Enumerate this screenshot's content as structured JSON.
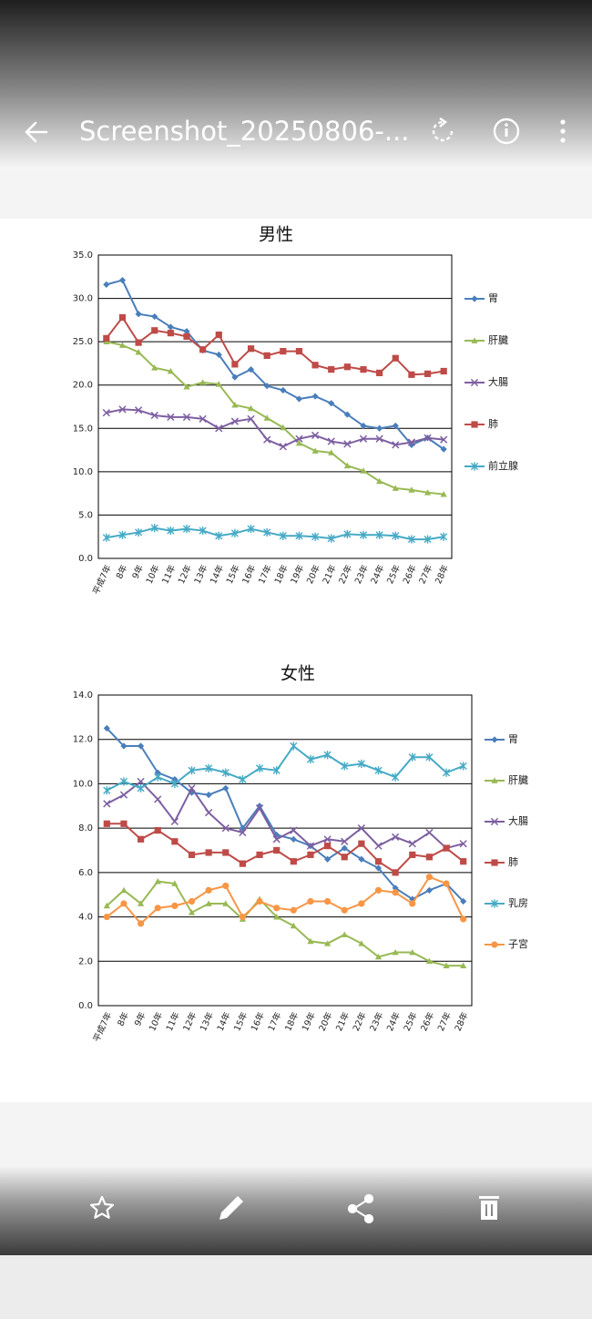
{
  "header": {
    "title": "Screenshot_20250806-..."
  },
  "chart_data": [
    {
      "type": "line",
      "title": "男性",
      "categories": [
        "平成7年",
        "8年",
        "9年",
        "10年",
        "11年",
        "12年",
        "13年",
        "14年",
        "15年",
        "16年",
        "17年",
        "18年",
        "19年",
        "20年",
        "21年",
        "22年",
        "23年",
        "24年",
        "25年",
        "26年",
        "27年",
        "28年"
      ],
      "ylim": [
        0,
        35
      ],
      "yticks": [
        {
          "value": 0,
          "label": "0.0"
        },
        {
          "value": 5,
          "label": "5.0"
        },
        {
          "value": 10,
          "label": "10.0"
        },
        {
          "value": 15,
          "label": "15.0"
        },
        {
          "value": 20,
          "label": "20.0"
        },
        {
          "value": 25,
          "label": "25.0"
        },
        {
          "value": 30,
          "label": "30.0"
        },
        {
          "value": 35,
          "label": "35.0"
        }
      ],
      "grid": true,
      "legend": "right",
      "series": [
        {
          "name": "胃",
          "color": "#4a7ebb",
          "marker": "diamond",
          "values": [
            31.6,
            32.1,
            28.2,
            27.9,
            26.7,
            26.2,
            24.0,
            23.5,
            20.9,
            21.8,
            19.9,
            19.4,
            18.4,
            18.7,
            17.9,
            16.6,
            15.3,
            15.0,
            15.3,
            13.1,
            13.9,
            12.6
          ]
        },
        {
          "name": "肝臓",
          "color": "#98b954",
          "marker": "triangle",
          "values": [
            25.0,
            24.6,
            23.8,
            22.0,
            21.6,
            19.8,
            20.3,
            20.1,
            17.7,
            17.3,
            16.2,
            15.1,
            13.3,
            12.4,
            12.2,
            10.7,
            10.1,
            8.9,
            8.1,
            7.9,
            7.6,
            7.4
          ]
        },
        {
          "name": "大腸",
          "color": "#7d5fa0",
          "marker": "x",
          "values": [
            16.8,
            17.2,
            17.1,
            16.5,
            16.3,
            16.3,
            16.1,
            15.0,
            15.8,
            16.1,
            13.7,
            12.9,
            13.8,
            14.2,
            13.5,
            13.2,
            13.8,
            13.8,
            13.1,
            13.4,
            13.9,
            13.7
          ]
        },
        {
          "name": "肺",
          "color": "#be4b48",
          "marker": "square",
          "values": [
            25.4,
            27.8,
            24.9,
            26.3,
            26.0,
            25.6,
            24.1,
            25.8,
            22.4,
            24.2,
            23.4,
            23.9,
            23.9,
            22.3,
            21.8,
            22.1,
            21.8,
            21.4,
            23.1,
            21.2,
            21.3,
            21.6
          ]
        },
        {
          "name": "前立腺",
          "color": "#46aac5",
          "marker": "star",
          "values": [
            2.4,
            2.7,
            3.0,
            3.5,
            3.2,
            3.4,
            3.2,
            2.6,
            2.9,
            3.4,
            3.0,
            2.6,
            2.6,
            2.5,
            2.3,
            2.8,
            2.7,
            2.7,
            2.6,
            2.2,
            2.2,
            2.5
          ]
        }
      ]
    },
    {
      "type": "line",
      "title": "女性",
      "categories": [
        "平成7年",
        "8年",
        "9年",
        "10年",
        "11年",
        "12年",
        "13年",
        "14年",
        "15年",
        "16年",
        "17年",
        "18年",
        "19年",
        "20年",
        "21年",
        "22年",
        "23年",
        "24年",
        "25年",
        "26年",
        "27年",
        "28年"
      ],
      "ylim": [
        0,
        14
      ],
      "yticks": [
        {
          "value": 0,
          "label": "0.0"
        },
        {
          "value": 2,
          "label": "2.0"
        },
        {
          "value": 4,
          "label": "4.0"
        },
        {
          "value": 6,
          "label": "6.0"
        },
        {
          "value": 8,
          "label": "8.0"
        },
        {
          "value": 10,
          "label": "10.0"
        },
        {
          "value": 12,
          "label": "12.0"
        },
        {
          "value": 14,
          "label": "14.0"
        }
      ],
      "grid": true,
      "legend": "right",
      "series": [
        {
          "name": "胃",
          "color": "#4a7ebb",
          "marker": "diamond",
          "values": [
            12.5,
            11.7,
            11.7,
            10.5,
            10.2,
            9.6,
            9.5,
            9.8,
            8.0,
            9.0,
            7.7,
            7.5,
            7.2,
            6.6,
            7.1,
            6.6,
            6.2,
            5.3,
            4.8,
            5.2,
            5.5,
            4.7
          ]
        },
        {
          "name": "肝臓",
          "color": "#98b954",
          "marker": "triangle",
          "values": [
            4.5,
            5.2,
            4.6,
            5.6,
            5.5,
            4.2,
            4.6,
            4.6,
            3.9,
            4.8,
            4.0,
            3.6,
            2.9,
            2.8,
            3.2,
            2.8,
            2.2,
            2.4,
            2.4,
            2.0,
            1.8,
            1.8
          ]
        },
        {
          "name": "大腸",
          "color": "#7d5fa0",
          "marker": "x",
          "values": [
            9.1,
            9.5,
            10.1,
            9.3,
            8.3,
            9.8,
            8.7,
            8.0,
            7.8,
            8.9,
            7.5,
            7.9,
            7.2,
            7.5,
            7.4,
            8.0,
            7.2,
            7.6,
            7.3,
            7.8,
            7.1,
            7.3
          ]
        },
        {
          "name": "肺",
          "color": "#be4b48",
          "marker": "square",
          "values": [
            8.2,
            8.2,
            7.5,
            7.9,
            7.4,
            6.8,
            6.9,
            6.9,
            6.4,
            6.8,
            7.0,
            6.5,
            6.8,
            7.2,
            6.7,
            7.3,
            6.5,
            6.0,
            6.8,
            6.7,
            7.1,
            6.5
          ]
        },
        {
          "name": "乳房",
          "color": "#46aac5",
          "marker": "star",
          "values": [
            9.7,
            10.1,
            9.8,
            10.3,
            10.0,
            10.6,
            10.7,
            10.5,
            10.2,
            10.7,
            10.6,
            11.7,
            11.1,
            11.3,
            10.8,
            10.9,
            10.6,
            10.3,
            11.2,
            11.2,
            10.5,
            10.8
          ]
        },
        {
          "name": "子宮",
          "color": "#f79646",
          "marker": "circle",
          "values": [
            4.0,
            4.6,
            3.7,
            4.4,
            4.5,
            4.7,
            5.2,
            5.4,
            4.0,
            4.7,
            4.4,
            4.3,
            4.7,
            4.7,
            4.3,
            4.6,
            5.2,
            5.1,
            4.6,
            5.8,
            5.5,
            3.9
          ]
        }
      ]
    }
  ]
}
